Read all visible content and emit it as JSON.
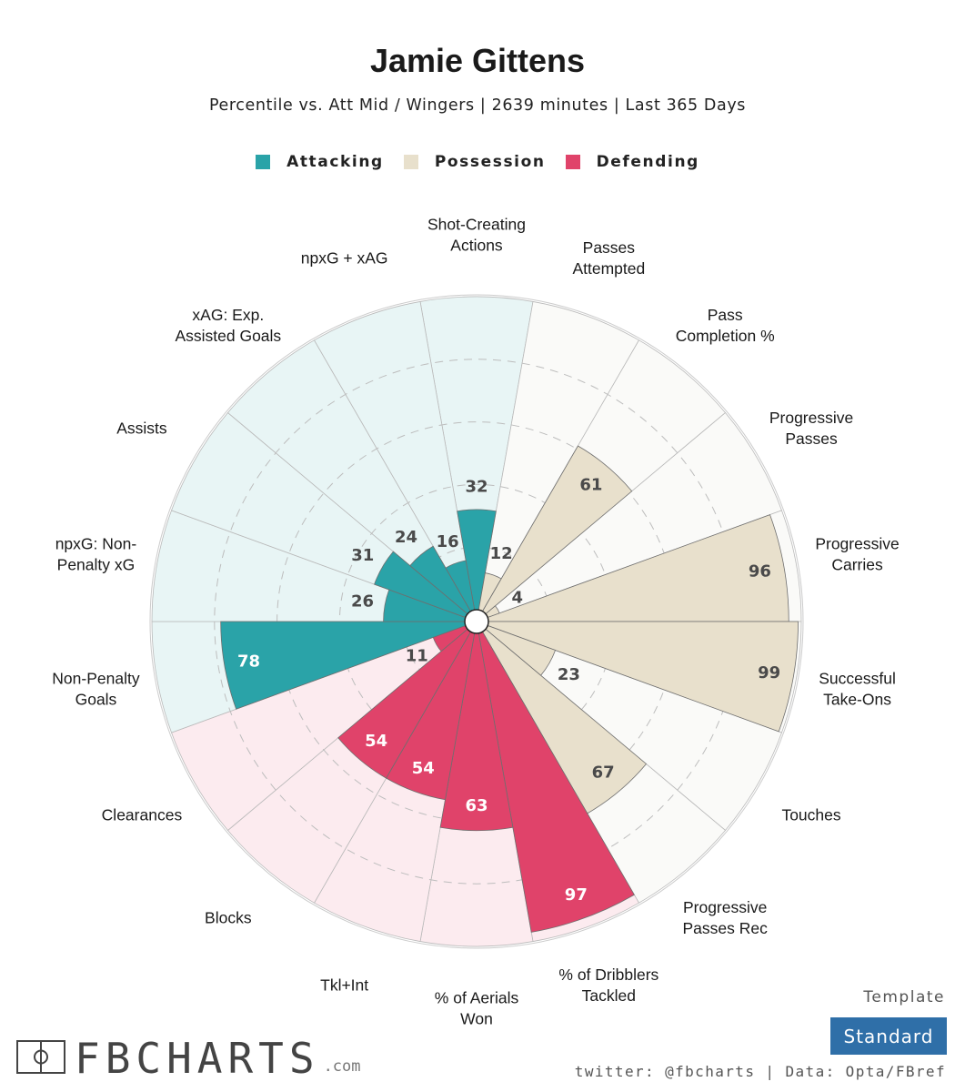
{
  "title": "Jamie Gittens",
  "subtitle": "Percentile vs. Att Mid / Wingers | 2639 minutes | Last 365 Days",
  "legend": [
    {
      "label": "Attacking",
      "color": "#2aa3a8"
    },
    {
      "label": "Possession",
      "color": "#e8e0cc"
    },
    {
      "label": "Defending",
      "color": "#e0436a"
    }
  ],
  "colors": {
    "Attacking": {
      "fill": "#2aa3a8",
      "bg": "#e8f5f5",
      "text": "#ffffff"
    },
    "Possession": {
      "fill": "#e8e0cc",
      "bg": "#fafaf8",
      "text": "#4a4a4a"
    },
    "Defending": {
      "fill": "#e0436a",
      "bg": "#fcebef",
      "text": "#ffffff"
    }
  },
  "chart_data": {
    "type": "polar-bar",
    "rlim": [
      0,
      100
    ],
    "gridlines": [
      20,
      40,
      60,
      80
    ],
    "metrics": [
      {
        "label": [
          "Shot-Creating",
          "Actions"
        ],
        "value": 32,
        "group": "Attacking"
      },
      {
        "label": [
          "Passes",
          "Attempted"
        ],
        "value": 12,
        "group": "Possession"
      },
      {
        "label": [
          "Pass",
          "Completion %"
        ],
        "value": 61,
        "group": "Possession"
      },
      {
        "label": [
          "Progressive",
          "Passes"
        ],
        "value": 4,
        "group": "Possession"
      },
      {
        "label": [
          "Progressive",
          "Carries"
        ],
        "value": 96,
        "group": "Possession"
      },
      {
        "label": [
          "Successful",
          "Take-Ons"
        ],
        "value": 99,
        "group": "Possession"
      },
      {
        "label": [
          "Touches"
        ],
        "value": 23,
        "group": "Possession"
      },
      {
        "label": [
          "Progressive",
          "Passes Rec"
        ],
        "value": 67,
        "group": "Possession"
      },
      {
        "label": [
          "% of Dribblers",
          "Tackled"
        ],
        "value": 97,
        "group": "Defending"
      },
      {
        "label": [
          "% of Aerials",
          "Won"
        ],
        "value": 63,
        "group": "Defending"
      },
      {
        "label": [
          "Tkl+Int"
        ],
        "value": 54,
        "group": "Defending"
      },
      {
        "label": [
          "Blocks"
        ],
        "value": 54,
        "group": "Defending"
      },
      {
        "label": [
          "Clearances"
        ],
        "value": 11,
        "group": "Defending"
      },
      {
        "label": [
          "Non-Penalty",
          "Goals"
        ],
        "value": 78,
        "group": "Attacking"
      },
      {
        "label": [
          "npxG: Non-",
          "Penalty xG"
        ],
        "value": 26,
        "group": "Attacking"
      },
      {
        "label": [
          "Assists"
        ],
        "value": 31,
        "group": "Attacking"
      },
      {
        "label": [
          "xAG: Exp.",
          "Assisted Goals"
        ],
        "value": 24,
        "group": "Attacking"
      },
      {
        "label": [
          "npxG + xAG"
        ],
        "value": 16,
        "group": "Attacking"
      }
    ]
  },
  "footer": {
    "template_label": "Template",
    "template_value": "Standard",
    "credit": "twitter: @fbcharts | Data: Opta/FBref",
    "brand": "FBCHARTS",
    "brand_suffix": ".com"
  }
}
